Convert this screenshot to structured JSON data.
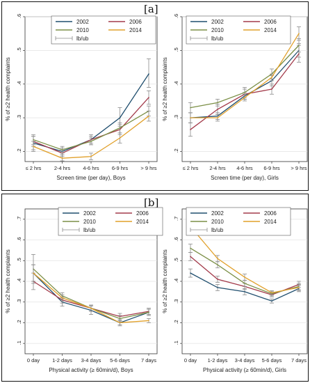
{
  "panel_labels": [
    "[a]",
    "[b]"
  ],
  "colors": {
    "2002": "#1f4e6e",
    "2006": "#a33a4a",
    "2010": "#7b8f46",
    "2014": "#e1a02a",
    "errorbar": "#8a8a8a"
  },
  "chart_data": [
    {
      "type": "line",
      "panel": "a",
      "xlabel": "Screen time (per day), Boys",
      "ylabel": "% of ≥2 health complaints",
      "categories": [
        "≤ 2 hrs",
        "2-4 hrs",
        "4-6 hrs",
        "6-9 hrs",
        "> 9 hrs"
      ],
      "ylim": [
        0.17,
        0.6
      ],
      "yticks": [
        0.2,
        0.3,
        0.4,
        0.5,
        0.6
      ],
      "ytick_labels": [
        ".2",
        ".3",
        ".4",
        ".5",
        ".6"
      ],
      "legend": [
        "2002",
        "2006",
        "2010",
        "2014",
        "lb/ub"
      ],
      "legend_position": "top",
      "series": [
        {
          "name": "2002",
          "values": [
            0.225,
            0.2,
            0.235,
            0.3,
            0.43
          ],
          "lb": [
            0.205,
            0.19,
            0.22,
            0.275,
            0.39
          ],
          "ub": [
            0.245,
            0.21,
            0.25,
            0.33,
            0.475
          ]
        },
        {
          "name": "2006",
          "values": [
            0.23,
            0.195,
            0.235,
            0.265,
            0.36
          ],
          "lb": [
            0.215,
            0.185,
            0.225,
            0.25,
            0.34
          ],
          "ub": [
            0.245,
            0.205,
            0.245,
            0.28,
            0.38
          ]
        },
        {
          "name": "2010",
          "values": [
            0.235,
            0.205,
            0.23,
            0.27,
            0.32
          ],
          "lb": [
            0.22,
            0.195,
            0.22,
            0.255,
            0.305
          ],
          "ub": [
            0.25,
            0.215,
            0.24,
            0.285,
            0.335
          ]
        },
        {
          "name": "2014",
          "values": [
            0.215,
            0.18,
            0.185,
            0.24,
            0.305
          ],
          "lb": [
            0.2,
            0.172,
            0.175,
            0.225,
            0.29
          ],
          "ub": [
            0.23,
            0.19,
            0.195,
            0.255,
            0.32
          ]
        }
      ]
    },
    {
      "type": "line",
      "panel": "a",
      "xlabel": "Screen time (per day), Girls",
      "ylabel": "% of ≥2 health complaints",
      "categories": [
        "≤ 2 hrs",
        "2-4 hrs",
        "4-6 hrs",
        "6-9 hrs",
        "> 9 hrs"
      ],
      "ylim": [
        0.17,
        0.6
      ],
      "yticks": [
        0.2,
        0.3,
        0.4,
        0.5,
        0.6
      ],
      "ytick_labels": [
        ".2",
        ".3",
        ".4",
        ".5",
        ".6"
      ],
      "legend": [
        "2002",
        "2006",
        "2010",
        "2014",
        "lb/ub"
      ],
      "legend_position": "top",
      "series": [
        {
          "name": "2002",
          "values": [
            0.3,
            0.305,
            0.365,
            0.41,
            0.5
          ],
          "lb": [
            0.285,
            0.295,
            0.355,
            0.395,
            0.48
          ],
          "ub": [
            0.315,
            0.315,
            0.375,
            0.425,
            0.52
          ]
        },
        {
          "name": "2006",
          "values": [
            0.265,
            0.325,
            0.37,
            0.385,
            0.49
          ],
          "lb": [
            0.245,
            0.31,
            0.355,
            0.37,
            0.465
          ],
          "ub": [
            0.285,
            0.34,
            0.385,
            0.4,
            0.515
          ]
        },
        {
          "name": "2010",
          "values": [
            0.33,
            0.345,
            0.375,
            0.43,
            0.515
          ],
          "lb": [
            0.315,
            0.335,
            0.36,
            0.415,
            0.495
          ],
          "ub": [
            0.345,
            0.355,
            0.39,
            0.445,
            0.535
          ]
        },
        {
          "name": "2014",
          "values": [
            0.3,
            0.3,
            0.36,
            0.42,
            0.55
          ],
          "lb": [
            0.285,
            0.29,
            0.35,
            0.41,
            0.53
          ],
          "ub": [
            0.315,
            0.31,
            0.37,
            0.43,
            0.57
          ]
        }
      ]
    },
    {
      "type": "line",
      "panel": "b",
      "xlabel": "Physical activity (≥ 60min/d), Boys",
      "ylabel": "% of ≥2 health complaints",
      "categories": [
        "0 day",
        "1-2 days",
        "3-4 days",
        "5-6 days",
        "7 days"
      ],
      "ylim": [
        0.05,
        0.75
      ],
      "yticks": [
        0.1,
        0.2,
        0.3,
        0.4,
        0.5,
        0.6,
        0.7
      ],
      "ytick_labels": [
        ".1",
        ".2",
        ".3",
        ".4",
        ".5",
        ".6",
        ".7"
      ],
      "legend": [
        "2002",
        "2006",
        "2010",
        "2014",
        "lb/ub"
      ],
      "legend_position": "top",
      "series": [
        {
          "name": "2002",
          "values": [
            0.44,
            0.3,
            0.26,
            0.2,
            0.25
          ],
          "lb": [
            0.4,
            0.28,
            0.24,
            0.185,
            0.235
          ],
          "ub": [
            0.48,
            0.32,
            0.28,
            0.215,
            0.265
          ]
        },
        {
          "name": "2006",
          "values": [
            0.4,
            0.31,
            0.27,
            0.23,
            0.255
          ],
          "lb": [
            0.36,
            0.295,
            0.255,
            0.215,
            0.24
          ],
          "ub": [
            0.44,
            0.325,
            0.285,
            0.245,
            0.27
          ]
        },
        {
          "name": "2010",
          "values": [
            0.46,
            0.33,
            0.27,
            0.22,
            0.25
          ],
          "lb": [
            0.39,
            0.315,
            0.255,
            0.205,
            0.235
          ],
          "ub": [
            0.53,
            0.345,
            0.285,
            0.235,
            0.265
          ]
        },
        {
          "name": "2014",
          "values": [
            0.44,
            0.32,
            0.27,
            0.2,
            0.21
          ],
          "lb": [
            0.4,
            0.305,
            0.255,
            0.19,
            0.2
          ],
          "ub": [
            0.48,
            0.335,
            0.285,
            0.21,
            0.22
          ]
        }
      ]
    },
    {
      "type": "line",
      "panel": "b",
      "xlabel": "Physical activity (≥ 60min/d), Girls",
      "ylabel": "% of ≥2 health complaints",
      "categories": [
        "0 day",
        "1-2 days",
        "3-4 days",
        "5-6 days",
        "7 days"
      ],
      "ylim": [
        0.05,
        0.75
      ],
      "yticks": [
        0.1,
        0.2,
        0.3,
        0.4,
        0.5,
        0.6,
        0.7
      ],
      "ytick_labels": [
        ".1",
        ".2",
        ".3",
        ".4",
        ".5",
        ".6",
        ".7"
      ],
      "legend": [
        "2002",
        "2006",
        "2010",
        "2014",
        "lb/ub"
      ],
      "legend_position": "top",
      "series": [
        {
          "name": "2002",
          "values": [
            0.44,
            0.37,
            0.35,
            0.305,
            0.365
          ],
          "lb": [
            0.42,
            0.355,
            0.335,
            0.295,
            0.35
          ],
          "ub": [
            0.46,
            0.385,
            0.365,
            0.315,
            0.38
          ]
        },
        {
          "name": "2006",
          "values": [
            0.52,
            0.41,
            0.375,
            0.335,
            0.385
          ],
          "lb": [
            0.5,
            0.395,
            0.36,
            0.325,
            0.37
          ],
          "ub": [
            0.54,
            0.425,
            0.39,
            0.345,
            0.4
          ]
        },
        {
          "name": "2010",
          "values": [
            0.56,
            0.48,
            0.39,
            0.34,
            0.375
          ],
          "lb": [
            0.54,
            0.465,
            0.375,
            0.33,
            0.36
          ],
          "ub": [
            0.58,
            0.495,
            0.405,
            0.35,
            0.39
          ]
        },
        {
          "name": "2014",
          "values": [
            0.665,
            0.51,
            0.42,
            0.345,
            0.37
          ],
          "lb": [
            0.64,
            0.495,
            0.405,
            0.335,
            0.355
          ],
          "ub": [
            0.69,
            0.525,
            0.435,
            0.355,
            0.385
          ]
        }
      ]
    }
  ]
}
